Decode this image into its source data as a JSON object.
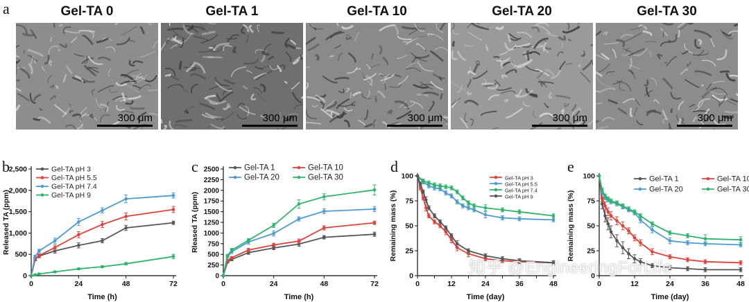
{
  "panel_a": {
    "letter": "a",
    "images": [
      {
        "title": "Gel-TA 0",
        "scale": "300 μm",
        "tone": "#8d8d8d"
      },
      {
        "title": "Gel-TA 1",
        "scale": "300 μm",
        "tone": "#6f6f6f"
      },
      {
        "title": "Gel-TA 10",
        "scale": "300 μm",
        "tone": "#8a8a8a"
      },
      {
        "title": "Gel-TA 20",
        "scale": "300 μm",
        "tone": "#9a9a9a"
      },
      {
        "title": "Gel-TA 30",
        "scale": "300 μm",
        "tone": "#8c8c8c"
      }
    ]
  },
  "watermark": "知乎 @EngineeringForLife",
  "chart_data": [
    {
      "letter": "b",
      "type": "line",
      "xlabel": "Time (h)",
      "ylabel": "Released TA (ppm)",
      "xlim": [
        0,
        72
      ],
      "ylim": [
        0,
        2500
      ],
      "xticks": [
        0,
        24,
        48,
        72
      ],
      "yticks": [
        0,
        500,
        1000,
        1500,
        2000,
        2500
      ],
      "legend": "top-left",
      "series": [
        {
          "name": "Gel-TA pH 3",
          "color": "#555555",
          "points": [
            [
              0,
              0
            ],
            [
              2,
              380
            ],
            [
              4,
              460
            ],
            [
              12,
              580
            ],
            [
              24,
              710
            ],
            [
              36,
              820
            ],
            [
              48,
              1120
            ],
            [
              72,
              1240
            ]
          ],
          "err": [
            0,
            30,
            40,
            50,
            60,
            50,
            60,
            40
          ]
        },
        {
          "name": "Gel-TA pH 5.5",
          "color": "#e0413b",
          "points": [
            [
              0,
              0
            ],
            [
              2,
              400
            ],
            [
              4,
              470
            ],
            [
              12,
              660
            ],
            [
              24,
              960
            ],
            [
              36,
              1200
            ],
            [
              48,
              1390
            ],
            [
              72,
              1550
            ]
          ],
          "err": [
            0,
            30,
            40,
            60,
            70,
            70,
            80,
            70
          ]
        },
        {
          "name": "Gel-TA pH 7.4",
          "color": "#4a9ad8",
          "points": [
            [
              0,
              0
            ],
            [
              2,
              450
            ],
            [
              4,
              580
            ],
            [
              12,
              820
            ],
            [
              24,
              1260
            ],
            [
              36,
              1530
            ],
            [
              48,
              1800
            ],
            [
              72,
              1880
            ]
          ],
          "err": [
            0,
            30,
            40,
            60,
            80,
            60,
            90,
            60
          ]
        },
        {
          "name": "Gel-TA pH 9",
          "color": "#2fb36a",
          "points": [
            [
              0,
              0
            ],
            [
              2,
              20
            ],
            [
              4,
              40
            ],
            [
              12,
              90
            ],
            [
              24,
              160
            ],
            [
              36,
              210
            ],
            [
              48,
              280
            ],
            [
              72,
              450
            ]
          ],
          "err": [
            0,
            10,
            10,
            15,
            20,
            20,
            30,
            50
          ]
        }
      ]
    },
    {
      "letter": "c",
      "type": "line",
      "xlabel": "Time (h)",
      "ylabel": "Rleased TA (ppm)",
      "xlim": [
        0,
        72
      ],
      "ylim": [
        0,
        2500
      ],
      "xticks": [
        0,
        24,
        48,
        72
      ],
      "yticks": [
        0,
        250,
        500,
        750,
        1000,
        1250,
        1500,
        1750,
        2000,
        2250,
        2500
      ],
      "legend": "top-left",
      "series": [
        {
          "name": "Gel-TA 1",
          "color": "#555555",
          "points": [
            [
              0,
              0
            ],
            [
              2,
              320
            ],
            [
              4,
              380
            ],
            [
              12,
              540
            ],
            [
              24,
              650
            ],
            [
              36,
              740
            ],
            [
              48,
              900
            ],
            [
              72,
              970
            ]
          ],
          "err": [
            0,
            20,
            30,
            40,
            40,
            50,
            40,
            50
          ]
        },
        {
          "name": "Gel-TA 10",
          "color": "#e0413b",
          "points": [
            [
              0,
              0
            ],
            [
              2,
              360
            ],
            [
              4,
              420
            ],
            [
              12,
              600
            ],
            [
              24,
              720
            ],
            [
              36,
              810
            ],
            [
              48,
              1120
            ],
            [
              72,
              1240
            ]
          ],
          "err": [
            0,
            20,
            30,
            40,
            40,
            50,
            50,
            40
          ]
        },
        {
          "name": "Gel-TA 20",
          "color": "#4a9ad8",
          "points": [
            [
              0,
              0
            ],
            [
              2,
              450
            ],
            [
              4,
              560
            ],
            [
              12,
              790
            ],
            [
              24,
              990
            ],
            [
              36,
              1330
            ],
            [
              48,
              1510
            ],
            [
              72,
              1560
            ]
          ],
          "err": [
            0,
            30,
            40,
            50,
            60,
            50,
            60,
            60
          ]
        },
        {
          "name": "Gel-TA 30",
          "color": "#2fb36a",
          "points": [
            [
              0,
              0
            ],
            [
              2,
              470
            ],
            [
              4,
              600
            ],
            [
              12,
              830
            ],
            [
              24,
              1180
            ],
            [
              36,
              1680
            ],
            [
              48,
              1850
            ],
            [
              72,
              2010
            ]
          ],
          "err": [
            0,
            30,
            40,
            40,
            50,
            100,
            70,
            120
          ]
        }
      ]
    },
    {
      "letter": "d",
      "type": "line",
      "xlabel": "Time (day)",
      "ylabel": "Remaining mass (%)",
      "xlim": [
        0,
        48
      ],
      "ylim": [
        0,
        100
      ],
      "xticks": [
        0,
        6,
        12,
        18,
        24,
        30,
        36,
        42,
        48
      ],
      "xticklabels": [
        "0",
        "",
        "12",
        "",
        "24",
        "",
        "36",
        "",
        "48"
      ],
      "yticks": [
        0,
        25,
        50,
        75,
        100
      ],
      "legend": "top-right",
      "series": [
        {
          "name": "Gel-TA pH 3",
          "color": "#e0413b",
          "points": [
            [
              0,
              100
            ],
            [
              1,
              88
            ],
            [
              2,
              78
            ],
            [
              3,
              68
            ],
            [
              4,
              60
            ],
            [
              6,
              54
            ],
            [
              8,
              50
            ],
            [
              10,
              44
            ],
            [
              12,
              36
            ],
            [
              14,
              28
            ],
            [
              18,
              22
            ],
            [
              24,
              17
            ],
            [
              30,
              15
            ],
            [
              36,
              14
            ],
            [
              48,
              13
            ]
          ],
          "err": [
            0,
            2,
            2,
            3,
            2,
            2,
            2,
            3,
            3,
            3,
            3,
            2,
            2,
            2,
            2
          ]
        },
        {
          "name": "Gel-TA pH 5.5",
          "color": "#4a9ad8",
          "points": [
            [
              0,
              100
            ],
            [
              2,
              94
            ],
            [
              4,
              90
            ],
            [
              6,
              88
            ],
            [
              8,
              87
            ],
            [
              10,
              83
            ],
            [
              12,
              80
            ],
            [
              14,
              74
            ],
            [
              16,
              70
            ],
            [
              18,
              68
            ],
            [
              20,
              66
            ],
            [
              24,
              61
            ],
            [
              30,
              58
            ],
            [
              36,
              57
            ],
            [
              48,
              56
            ]
          ],
          "err": [
            0,
            2,
            2,
            2,
            2,
            2,
            2,
            2,
            2,
            2,
            2,
            3,
            2,
            2,
            2
          ]
        },
        {
          "name": "Gel-TA pH 7.4",
          "color": "#2fb36a",
          "points": [
            [
              0,
              100
            ],
            [
              2,
              95
            ],
            [
              4,
              93
            ],
            [
              6,
              91
            ],
            [
              8,
              90
            ],
            [
              10,
              89
            ],
            [
              12,
              88
            ],
            [
              14,
              84
            ],
            [
              16,
              78
            ],
            [
              18,
              73
            ],
            [
              20,
              70
            ],
            [
              24,
              68
            ],
            [
              30,
              66
            ],
            [
              36,
              64
            ],
            [
              48,
              60
            ]
          ],
          "err": [
            0,
            2,
            2,
            2,
            2,
            2,
            2,
            2,
            2,
            2,
            2,
            3,
            2,
            2,
            2
          ]
        },
        {
          "name": "Gel-TA pH 9",
          "color": "#555555",
          "points": [
            [
              0,
              100
            ],
            [
              1,
              92
            ],
            [
              2,
              84
            ],
            [
              3,
              76
            ],
            [
              4,
              68
            ],
            [
              6,
              60
            ],
            [
              8,
              54
            ],
            [
              10,
              48
            ],
            [
              12,
              40
            ],
            [
              14,
              32
            ],
            [
              18,
              25
            ],
            [
              24,
              20
            ],
            [
              30,
              17
            ],
            [
              36,
              15
            ],
            [
              48,
              13
            ]
          ],
          "err": [
            0,
            2,
            2,
            3,
            2,
            2,
            2,
            2,
            2,
            3,
            2,
            2,
            2,
            2,
            2
          ]
        }
      ]
    },
    {
      "letter": "e",
      "type": "line",
      "xlabel": "Time (day)",
      "ylabel": "Remaining mass (%)",
      "xlim": [
        0,
        48
      ],
      "ylim": [
        0,
        100
      ],
      "xticks": [
        0,
        12,
        24,
        36,
        48
      ],
      "yticks": [
        0,
        25,
        50,
        75,
        100
      ],
      "legend": "top-right",
      "series": [
        {
          "name": "Gel-TA 1",
          "color": "#555555",
          "points": [
            [
              0,
              100
            ],
            [
              1,
              72
            ],
            [
              2,
              60
            ],
            [
              3,
              52
            ],
            [
              4,
              44
            ],
            [
              6,
              35
            ],
            [
              8,
              28
            ],
            [
              10,
              22
            ],
            [
              12,
              17
            ],
            [
              14,
              14
            ],
            [
              18,
              10
            ],
            [
              24,
              8
            ],
            [
              30,
              7
            ],
            [
              36,
              6
            ],
            [
              48,
              6
            ]
          ],
          "err": [
            0,
            5,
            6,
            6,
            6,
            6,
            6,
            5,
            4,
            3,
            2,
            2,
            2,
            2,
            2
          ]
        },
        {
          "name": "Gel-TA 10",
          "color": "#e0413b",
          "points": [
            [
              0,
              100
            ],
            [
              1,
              78
            ],
            [
              2,
              70
            ],
            [
              3,
              64
            ],
            [
              4,
              60
            ],
            [
              6,
              55
            ],
            [
              8,
              50
            ],
            [
              10,
              45
            ],
            [
              12,
              38
            ],
            [
              14,
              33
            ],
            [
              18,
              24
            ],
            [
              24,
              19
            ],
            [
              30,
              16
            ],
            [
              36,
              14
            ],
            [
              48,
              13
            ]
          ],
          "err": [
            0,
            4,
            4,
            4,
            4,
            4,
            4,
            3,
            3,
            3,
            3,
            2,
            2,
            2,
            2
          ]
        },
        {
          "name": "Gel-TA 20",
          "color": "#4a9ad8",
          "points": [
            [
              0,
              100
            ],
            [
              1,
              84
            ],
            [
              2,
              78
            ],
            [
              3,
              76
            ],
            [
              4,
              74
            ],
            [
              6,
              72
            ],
            [
              8,
              69
            ],
            [
              10,
              66
            ],
            [
              12,
              63
            ],
            [
              14,
              56
            ],
            [
              18,
              46
            ],
            [
              24,
              35
            ],
            [
              30,
              33
            ],
            [
              36,
              32
            ],
            [
              48,
              31
            ]
          ],
          "err": [
            0,
            2,
            2,
            2,
            2,
            2,
            2,
            2,
            2,
            3,
            3,
            3,
            2,
            2,
            2
          ]
        },
        {
          "name": "Gel-TA 30",
          "color": "#2fb36a",
          "points": [
            [
              0,
              100
            ],
            [
              1,
              86
            ],
            [
              2,
              80
            ],
            [
              3,
              77
            ],
            [
              4,
              75
            ],
            [
              6,
              73
            ],
            [
              8,
              70
            ],
            [
              10,
              67
            ],
            [
              12,
              64
            ],
            [
              14,
              60
            ],
            [
              18,
              52
            ],
            [
              24,
              43
            ],
            [
              30,
              40
            ],
            [
              36,
              37
            ],
            [
              48,
              36
            ]
          ],
          "err": [
            0,
            2,
            2,
            2,
            2,
            2,
            2,
            2,
            2,
            2,
            2,
            2,
            2,
            4,
            3
          ]
        }
      ]
    }
  ]
}
